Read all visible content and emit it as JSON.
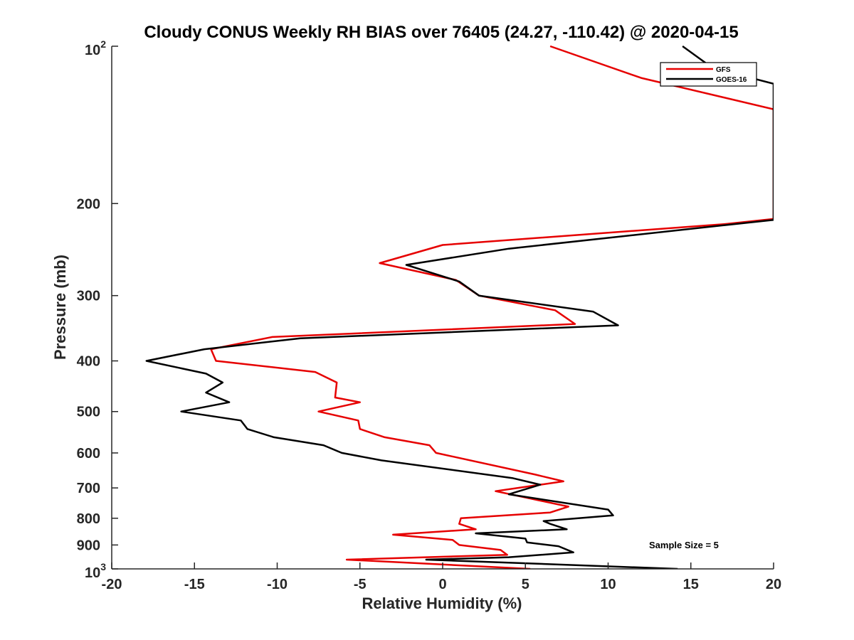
{
  "chart_data": {
    "type": "line",
    "title": "Cloudy CONUS Weekly RH BIAS over 76405 (24.27, -110.42) @ 2020-04-15",
    "xlabel": "Relative Humidity (%)",
    "ylabel": "Pressure (mb)",
    "xlim": [
      -20,
      20
    ],
    "ylim": [
      100,
      1000
    ],
    "yscale": "log",
    "yreversed": true,
    "grid": false,
    "legend_position": "top-right",
    "x_ticks": [
      -20,
      -15,
      -10,
      -5,
      0,
      5,
      10,
      15,
      20
    ],
    "y_ticks": [
      100,
      200,
      300,
      400,
      500,
      600,
      700,
      800,
      900,
      1000
    ],
    "y_tick_labels": [
      {
        "base": "10",
        "exp": "2"
      },
      {
        "base": "200",
        "exp": ""
      },
      {
        "base": "300",
        "exp": ""
      },
      {
        "base": "400",
        "exp": ""
      },
      {
        "base": "500",
        "exp": ""
      },
      {
        "base": "600",
        "exp": ""
      },
      {
        "base": "700",
        "exp": ""
      },
      {
        "base": "800",
        "exp": ""
      },
      {
        "base": "900",
        "exp": ""
      },
      {
        "base": "10",
        "exp": "3"
      }
    ],
    "annotation": "Sample Size = 5",
    "series": [
      {
        "name": "GFS",
        "color": "#e60000",
        "points": [
          [
            6.5,
            100
          ],
          [
            12.0,
            115
          ],
          [
            20.0,
            132
          ],
          [
            20.0,
            214
          ],
          [
            17.0,
            219
          ],
          [
            0.0,
            240
          ],
          [
            -3.8,
            260
          ],
          [
            0.8,
            280
          ],
          [
            2.2,
            300
          ],
          [
            6.8,
            320
          ],
          [
            8.0,
            340
          ],
          [
            -10.3,
            360
          ],
          [
            -14.0,
            380
          ],
          [
            -13.7,
            400
          ],
          [
            -7.7,
            420
          ],
          [
            -6.4,
            440
          ],
          [
            -6.5,
            470
          ],
          [
            -5.0,
            480
          ],
          [
            -7.5,
            500
          ],
          [
            -5.1,
            520
          ],
          [
            -5.0,
            540
          ],
          [
            -3.5,
            560
          ],
          [
            -0.8,
            580
          ],
          [
            -0.4,
            600
          ],
          [
            5.6,
            660
          ],
          [
            7.3,
            680
          ],
          [
            3.2,
            710
          ],
          [
            7.6,
            760
          ],
          [
            6.5,
            780
          ],
          [
            1.1,
            800
          ],
          [
            1.0,
            820
          ],
          [
            2.0,
            840
          ],
          [
            -3.0,
            860
          ],
          [
            0.6,
            880
          ],
          [
            1.0,
            900
          ],
          [
            3.5,
            920
          ],
          [
            3.9,
            940
          ],
          [
            -5.8,
            960
          ],
          [
            5.3,
            1000
          ]
        ]
      },
      {
        "name": "GOES-16",
        "color": "#000000",
        "points": [
          [
            14.5,
            100
          ],
          [
            16.3,
            110
          ],
          [
            20.0,
            118
          ],
          [
            20.0,
            215
          ],
          [
            17.0,
            220
          ],
          [
            4.0,
            244
          ],
          [
            -2.2,
            262
          ],
          [
            1.0,
            282
          ],
          [
            2.2,
            300
          ],
          [
            9.1,
            322
          ],
          [
            10.6,
            342
          ],
          [
            -8.6,
            362
          ],
          [
            -14.4,
            380
          ],
          [
            -17.9,
            400
          ],
          [
            -14.3,
            423
          ],
          [
            -13.3,
            440
          ],
          [
            -14.3,
            460
          ],
          [
            -12.9,
            480
          ],
          [
            -15.8,
            500
          ],
          [
            -12.2,
            520
          ],
          [
            -11.8,
            540
          ],
          [
            -10.2,
            560
          ],
          [
            -7.2,
            580
          ],
          [
            -6.1,
            600
          ],
          [
            -3.7,
            620
          ],
          [
            4.2,
            670
          ],
          [
            5.9,
            690
          ],
          [
            4.0,
            720
          ],
          [
            10.0,
            770
          ],
          [
            10.3,
            790
          ],
          [
            6.1,
            810
          ],
          [
            6.5,
            820
          ],
          [
            7.5,
            840
          ],
          [
            2.0,
            855
          ],
          [
            5.0,
            875
          ],
          [
            5.1,
            890
          ],
          [
            7.0,
            905
          ],
          [
            7.9,
            930
          ],
          [
            4.0,
            950
          ],
          [
            -1.0,
            960
          ],
          [
            14.2,
            1000
          ]
        ]
      }
    ]
  }
}
